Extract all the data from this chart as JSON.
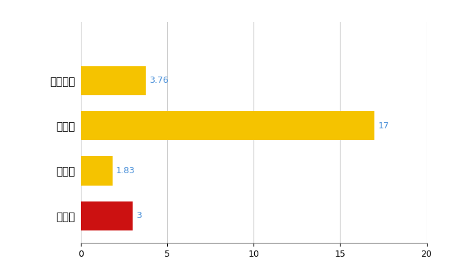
{
  "categories": [
    "茅野市",
    "県平均",
    "県最大",
    "全国平均"
  ],
  "values": [
    3,
    1.83,
    17,
    3.76
  ],
  "bar_colors": [
    "#CC1111",
    "#F5C300",
    "#F5C300",
    "#F5C300"
  ],
  "value_labels": [
    "3",
    "1.83",
    "17",
    "3.76"
  ],
  "value_label_color": "#4a90d9",
  "xlim": [
    0,
    20
  ],
  "xticks": [
    0,
    5,
    10,
    15,
    20
  ],
  "background_color": "#ffffff",
  "grid_color": "#cccccc",
  "bar_height": 0.65,
  "figsize": [
    6.5,
    4.0
  ],
  "dpi": 100
}
